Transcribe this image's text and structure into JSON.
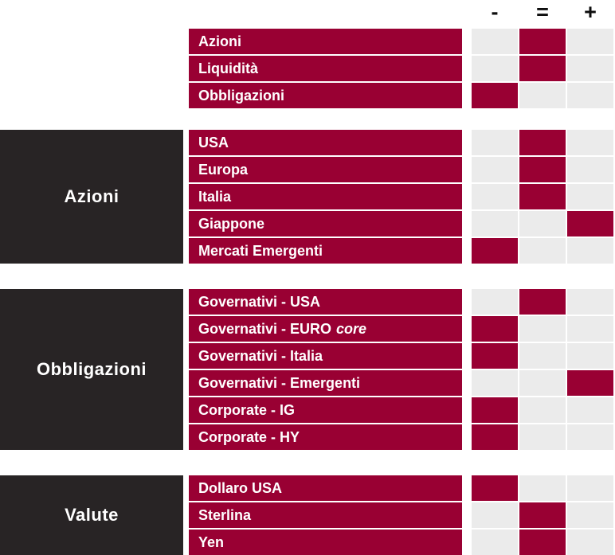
{
  "colors": {
    "accent_red": "#990033",
    "group_box_dark": "#282425",
    "cell_inactive": "#ebebeb",
    "row_text": "#ffffff",
    "header_symbol": "#0d0d0d",
    "background": "#ffffff"
  },
  "chart_data": {
    "type": "table",
    "title": "",
    "columns": [
      "-",
      "=",
      "+"
    ],
    "legend": "view matrix: one highlighted cell per row indicating negative (-), neutral (=) or positive (+) view",
    "sections": [
      {
        "title": "",
        "rows": [
          {
            "label": "Azioni",
            "value": "="
          },
          {
            "label": "Liquidità",
            "value": "="
          },
          {
            "label": "Obbligazioni",
            "value": "-"
          }
        ]
      },
      {
        "title": "Azioni",
        "rows": [
          {
            "label": "USA",
            "value": "="
          },
          {
            "label": "Europa",
            "value": "="
          },
          {
            "label": "Italia",
            "value": "="
          },
          {
            "label": "Giappone",
            "value": "+"
          },
          {
            "label": "Mercati Emergenti",
            "value": "-"
          }
        ]
      },
      {
        "title": "Obbligazioni",
        "rows": [
          {
            "label": "Governativi - USA",
            "value": "="
          },
          {
            "label": "Governativi - EURO",
            "label_italic": "core",
            "value": "-"
          },
          {
            "label": "Governativi - Italia",
            "value": "-"
          },
          {
            "label": "Governativi - Emergenti",
            "value": "+"
          },
          {
            "label": "Corporate - IG",
            "value": "-"
          },
          {
            "label": "Corporate - HY",
            "value": "-"
          }
        ]
      },
      {
        "title": "Valute",
        "rows": [
          {
            "label": "Dollaro USA",
            "value": "-"
          },
          {
            "label": "Sterlina",
            "value": "="
          },
          {
            "label": "Yen",
            "value": "="
          }
        ]
      }
    ]
  }
}
